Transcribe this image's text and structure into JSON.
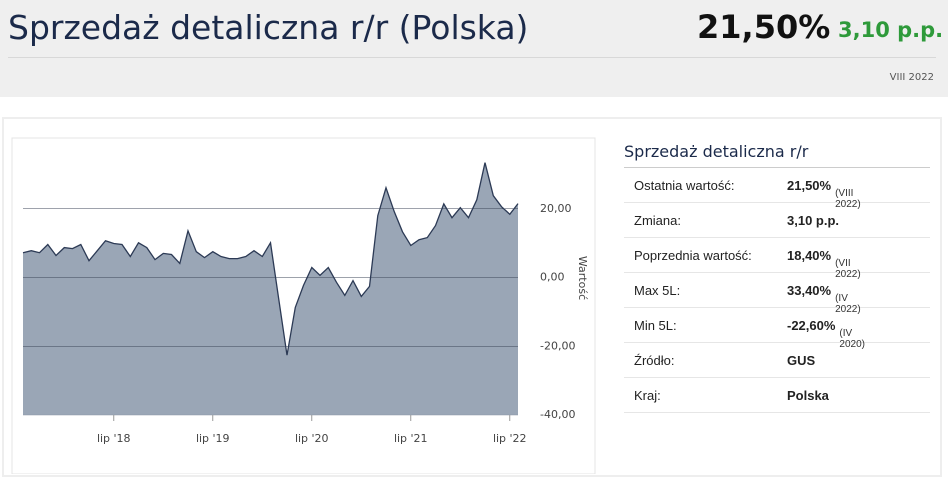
{
  "header": {
    "title": "Sprzedaż detaliczna r/r (Polska)",
    "value": "21,50%",
    "change": "3,10 p.p.",
    "date": "VIII 2022"
  },
  "chart_data": {
    "type": "area",
    "categories": [
      null,
      null,
      null,
      null,
      null,
      null,
      null,
      null,
      null,
      null,
      null,
      "lip '18",
      null,
      null,
      null,
      null,
      null,
      null,
      null,
      null,
      null,
      null,
      null,
      "lip '19",
      null,
      null,
      null,
      null,
      null,
      null,
      null,
      null,
      null,
      null,
      null,
      "lip '20",
      null,
      null,
      null,
      null,
      null,
      null,
      null,
      null,
      null,
      null,
      null,
      "lip '21",
      null,
      null,
      null,
      null,
      null,
      null,
      null,
      null,
      null,
      null,
      null,
      "lip '22",
      null
    ],
    "series": [
      {
        "color": "#9aa6b6",
        "values": [
          7.2,
          7.8,
          7.2,
          9.6,
          6.4,
          8.7,
          8.4,
          9.6,
          4.9,
          7.8,
          10.7,
          9.9,
          9.6,
          6.1,
          10.1,
          8.7,
          5.2,
          7.0,
          6.7,
          4.1,
          13.6,
          7.5,
          5.8,
          7.5,
          6.1,
          5.5,
          5.5,
          6.1,
          7.8,
          6.1,
          10.1,
          -6.4,
          -22.6,
          -8.7,
          -2.3,
          2.9,
          0.6,
          2.9,
          -1.4,
          -5.2,
          -0.9,
          -5.5,
          -2.6,
          18.0,
          26.1,
          19.1,
          13.3,
          9.3,
          11.0,
          11.6,
          15.1,
          21.4,
          17.4,
          20.3,
          17.4,
          22.6,
          33.4,
          23.8,
          20.6,
          18.4,
          21.5
        ]
      }
    ],
    "ylabel": "Wartość",
    "ylim": [
      -40,
      40
    ],
    "yticks": [
      {
        "value": -40,
        "label": "-40,00"
      },
      {
        "value": -20,
        "label": "-20,00"
      },
      {
        "value": 0,
        "label": "0,00"
      },
      {
        "value": 20,
        "label": "20,00"
      }
    ],
    "grid": true
  },
  "table": {
    "title": "Sprzedaż detaliczna r/r",
    "rows": [
      [
        "Ostatnia wartość:",
        "21,50%",
        "(VIII 2022)"
      ],
      [
        "Zmiana:",
        "3,10 p.p."
      ],
      [
        "Poprzednia wartość:",
        "18,40%",
        "(VII 2022)"
      ],
      [
        "Max 5L:",
        "33,40%",
        "(IV 2022)"
      ],
      [
        "Min 5L:",
        "-22,60%",
        "(IV 2020)"
      ],
      [
        "Źródło:",
        "GUS"
      ],
      [
        "Kraj:",
        "Polska"
      ]
    ]
  }
}
